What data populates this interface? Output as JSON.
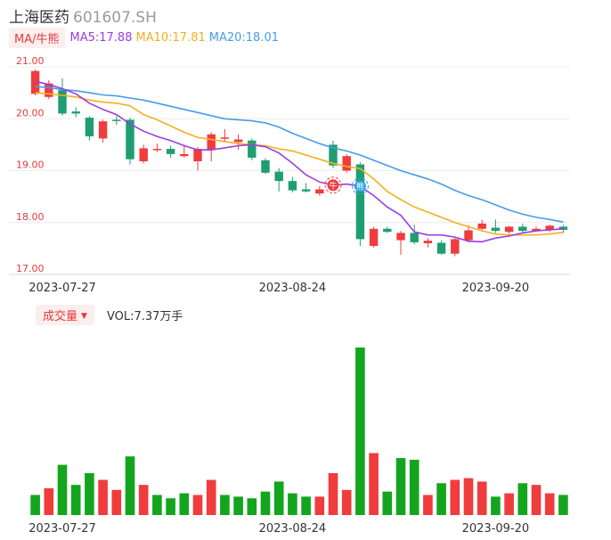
{
  "header": {
    "name": "上海医药",
    "code": "601607.SH"
  },
  "ma": {
    "tag": "MA/牛熊",
    "ma5": {
      "label": "MA5:17.88",
      "color": "#9b3de0"
    },
    "ma10": {
      "label": "MA10:17.81",
      "color": "#f2b01e"
    },
    "ma20": {
      "label": "MA20:18.01",
      "color": "#4a9be8"
    }
  },
  "volume": {
    "tag": "成交量",
    "label": "VOL:7.37万手"
  },
  "colors": {
    "up": "#f03c3c",
    "down": "#1e9e72",
    "vol_up": "#f03c3c",
    "vol_down": "#14a51f",
    "grid": "#ececec"
  },
  "signals": [
    {
      "index": 22,
      "text": "牛",
      "color": "#f03c3c"
    },
    {
      "index": 24,
      "text": "熊",
      "color": "#2ba3e0"
    }
  ],
  "chart_data": {
    "type": "candlestick",
    "y_ticks": [
      "21.00",
      "20.00",
      "19.00",
      "18.00",
      "17.00"
    ],
    "ylim": [
      17.0,
      21.0
    ],
    "x_tick_labels": [
      {
        "index": 2,
        "label": "2023-07-27"
      },
      {
        "index": 19,
        "label": "2023-08-24"
      },
      {
        "index": 34,
        "label": "2023-09-20"
      }
    ],
    "candles": [
      {
        "o": 20.48,
        "c": 20.92,
        "h": 20.95,
        "l": 20.45
      },
      {
        "o": 20.42,
        "c": 20.68,
        "h": 20.74,
        "l": 20.38
      },
      {
        "o": 20.55,
        "c": 20.1,
        "h": 20.78,
        "l": 20.06
      },
      {
        "o": 20.14,
        "c": 20.1,
        "h": 20.22,
        "l": 20.03
      },
      {
        "o": 20.02,
        "c": 19.66,
        "h": 20.05,
        "l": 19.58
      },
      {
        "o": 19.62,
        "c": 19.95,
        "h": 19.98,
        "l": 19.54
      },
      {
        "o": 19.98,
        "c": 19.96,
        "h": 20.05,
        "l": 19.88
      },
      {
        "o": 19.98,
        "c": 19.22,
        "h": 20.02,
        "l": 19.12
      },
      {
        "o": 19.18,
        "c": 19.43,
        "h": 19.5,
        "l": 19.14
      },
      {
        "o": 19.4,
        "c": 19.42,
        "h": 19.52,
        "l": 19.36
      },
      {
        "o": 19.42,
        "c": 19.32,
        "h": 19.48,
        "l": 19.25
      },
      {
        "o": 19.28,
        "c": 19.32,
        "h": 19.5,
        "l": 19.25
      },
      {
        "o": 19.18,
        "c": 19.42,
        "h": 19.46,
        "l": 19.0
      },
      {
        "o": 19.4,
        "c": 19.7,
        "h": 19.74,
        "l": 19.18
      },
      {
        "o": 19.62,
        "c": 19.64,
        "h": 19.8,
        "l": 19.55
      },
      {
        "o": 19.55,
        "c": 19.6,
        "h": 19.7,
        "l": 19.4
      },
      {
        "o": 19.58,
        "c": 19.25,
        "h": 19.62,
        "l": 19.2
      },
      {
        "o": 19.2,
        "c": 18.96,
        "h": 19.24,
        "l": 18.94
      },
      {
        "o": 18.98,
        "c": 18.8,
        "h": 19.05,
        "l": 18.6
      },
      {
        "o": 18.8,
        "c": 18.62,
        "h": 18.88,
        "l": 18.58
      },
      {
        "o": 18.64,
        "c": 18.6,
        "h": 18.76,
        "l": 18.58
      },
      {
        "o": 18.56,
        "c": 18.64,
        "h": 18.7,
        "l": 18.52
      },
      {
        "o": 19.5,
        "c": 19.1,
        "h": 19.58,
        "l": 19.05
      },
      {
        "o": 19.0,
        "c": 19.28,
        "h": 19.32,
        "l": 18.96
      },
      {
        "o": 19.12,
        "c": 17.68,
        "h": 19.16,
        "l": 17.55
      },
      {
        "o": 17.55,
        "c": 17.88,
        "h": 17.92,
        "l": 17.52
      },
      {
        "o": 17.88,
        "c": 17.82,
        "h": 17.92,
        "l": 17.8
      },
      {
        "o": 17.66,
        "c": 17.8,
        "h": 17.84,
        "l": 17.38
      },
      {
        "o": 17.8,
        "c": 17.62,
        "h": 17.96,
        "l": 17.58
      },
      {
        "o": 17.6,
        "c": 17.65,
        "h": 17.7,
        "l": 17.52
      },
      {
        "o": 17.61,
        "c": 17.4,
        "h": 17.66,
        "l": 17.38
      },
      {
        "o": 17.4,
        "c": 17.68,
        "h": 17.72,
        "l": 17.35
      },
      {
        "o": 17.66,
        "c": 17.85,
        "h": 17.95,
        "l": 17.62
      },
      {
        "o": 17.88,
        "c": 17.98,
        "h": 18.05,
        "l": 17.84
      },
      {
        "o": 17.9,
        "c": 17.84,
        "h": 18.06,
        "l": 17.8
      },
      {
        "o": 17.82,
        "c": 17.92,
        "h": 17.94,
        "l": 17.78
      },
      {
        "o": 17.92,
        "c": 17.84,
        "h": 17.98,
        "l": 17.8
      },
      {
        "o": 17.84,
        "c": 17.88,
        "h": 17.92,
        "l": 17.82
      },
      {
        "o": 17.86,
        "c": 17.94,
        "h": 17.96,
        "l": 17.82
      },
      {
        "o": 17.92,
        "c": 17.86,
        "h": 17.95,
        "l": 17.8
      }
    ],
    "volumes": [
      {
        "v": 1.2,
        "up": false
      },
      {
        "v": 1.6,
        "up": true
      },
      {
        "v": 3.0,
        "up": false
      },
      {
        "v": 1.8,
        "up": false
      },
      {
        "v": 2.5,
        "up": false
      },
      {
        "v": 2.1,
        "up": true
      },
      {
        "v": 1.5,
        "up": true
      },
      {
        "v": 3.5,
        "up": false
      },
      {
        "v": 1.8,
        "up": true
      },
      {
        "v": 1.2,
        "up": false
      },
      {
        "v": 1.0,
        "up": false
      },
      {
        "v": 1.3,
        "up": false
      },
      {
        "v": 1.2,
        "up": true
      },
      {
        "v": 2.1,
        "up": true
      },
      {
        "v": 1.2,
        "up": false
      },
      {
        "v": 1.1,
        "up": false
      },
      {
        "v": 1.0,
        "up": false
      },
      {
        "v": 1.4,
        "up": false
      },
      {
        "v": 2.0,
        "up": false
      },
      {
        "v": 1.3,
        "up": false
      },
      {
        "v": 1.1,
        "up": false
      },
      {
        "v": 1.1,
        "up": true
      },
      {
        "v": 2.5,
        "up": true
      },
      {
        "v": 1.5,
        "up": true
      },
      {
        "v": 10.0,
        "up": false
      },
      {
        "v": 3.7,
        "up": true
      },
      {
        "v": 1.4,
        "up": false
      },
      {
        "v": 3.4,
        "up": false
      },
      {
        "v": 3.3,
        "up": false
      },
      {
        "v": 1.2,
        "up": true
      },
      {
        "v": 1.9,
        "up": false
      },
      {
        "v": 2.1,
        "up": true
      },
      {
        "v": 2.2,
        "up": true
      },
      {
        "v": 2.0,
        "up": true
      },
      {
        "v": 1.1,
        "up": false
      },
      {
        "v": 1.3,
        "up": true
      },
      {
        "v": 1.9,
        "up": false
      },
      {
        "v": 1.8,
        "up": true
      },
      {
        "v": 1.3,
        "up": true
      },
      {
        "v": 1.2,
        "up": false
      }
    ],
    "ma5": [
      20.72,
      20.66,
      20.58,
      20.48,
      20.3,
      20.18,
      20.08,
      19.9,
      19.76,
      19.66,
      19.58,
      19.48,
      19.4,
      19.4,
      19.44,
      19.48,
      19.5,
      19.46,
      19.34,
      19.14,
      18.92,
      18.78,
      18.72,
      18.74,
      18.7,
      18.52,
      18.3,
      18.14,
      17.82,
      17.76,
      17.76,
      17.72,
      17.64,
      17.63,
      17.7,
      17.74,
      17.8,
      17.84,
      17.86,
      17.88
    ],
    "ma10": [
      20.5,
      20.48,
      20.45,
      20.42,
      20.36,
      20.32,
      20.3,
      20.25,
      20.08,
      19.98,
      19.86,
      19.74,
      19.64,
      19.6,
      19.56,
      19.52,
      19.5,
      19.48,
      19.42,
      19.38,
      19.3,
      19.22,
      19.14,
      19.08,
      19.04,
      18.84,
      18.6,
      18.44,
      18.3,
      18.2,
      18.1,
      18.0,
      17.92,
      17.84,
      17.78,
      17.76,
      17.76,
      17.76,
      17.78,
      17.81
    ],
    "ma20": [
      20.62,
      20.6,
      20.56,
      20.54,
      20.5,
      20.46,
      20.44,
      20.4,
      20.36,
      20.3,
      20.24,
      20.18,
      20.12,
      20.06,
      20.0,
      19.98,
      19.96,
      19.92,
      19.84,
      19.72,
      19.62,
      19.52,
      19.44,
      19.38,
      19.3,
      19.2,
      19.1,
      19.0,
      18.92,
      18.84,
      18.74,
      18.62,
      18.52,
      18.44,
      18.34,
      18.24,
      18.16,
      18.1,
      18.06,
      18.01
    ]
  }
}
